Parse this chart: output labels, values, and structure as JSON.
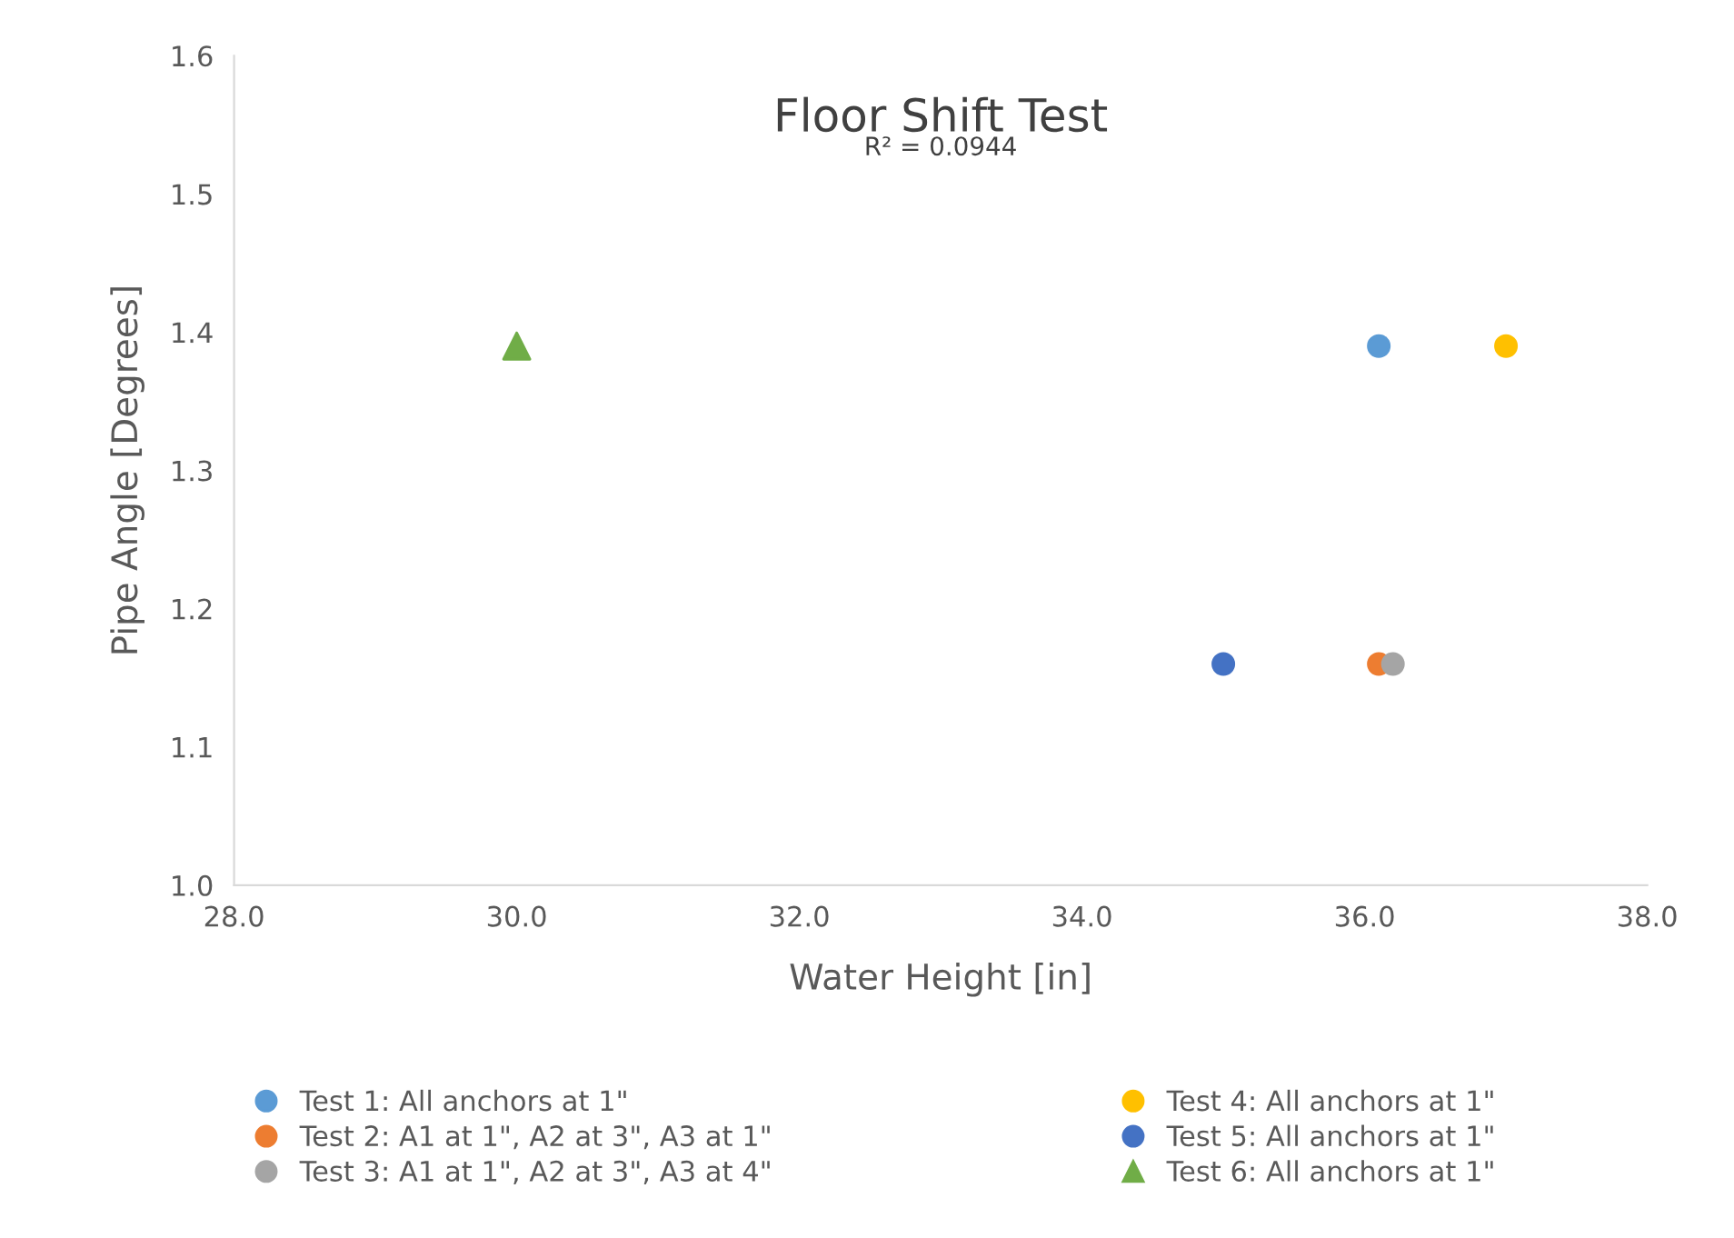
{
  "chart_data": {
    "type": "scatter",
    "title": "Floor Shift Test",
    "annotations": [
      "R² = 0.0944"
    ],
    "xlabel": "Water Height [in]",
    "ylabel": "Pipe Angle [Degrees]",
    "xlim": [
      28,
      38
    ],
    "xticks": [
      {
        "value": 28,
        "label": "28.0"
      },
      {
        "value": 30,
        "label": "30.0"
      },
      {
        "value": 32,
        "label": "32.0"
      },
      {
        "value": 34,
        "label": "34.0"
      },
      {
        "value": 36,
        "label": "36.0"
      },
      {
        "value": 38,
        "label": "38.0"
      }
    ],
    "ylim": [
      1.0,
      1.6
    ],
    "yticks": [
      {
        "value": 1.0,
        "label": "1.0"
      },
      {
        "value": 1.1,
        "label": "1.1"
      },
      {
        "value": 1.2,
        "label": "1.2"
      },
      {
        "value": 1.3,
        "label": "1.3"
      },
      {
        "value": 1.4,
        "label": "1.4"
      },
      {
        "value": 1.5,
        "label": "1.5"
      },
      {
        "value": 1.6,
        "label": "1.6"
      }
    ],
    "grid": false,
    "legend": "bottom",
    "marker": "circle",
    "series": [
      {
        "name": "Test 1: All anchors at 1\"",
        "color": "#5b9bd5",
        "x": [
          36.1
        ],
        "values": [
          1.39
        ]
      },
      {
        "name": "Test 2: A1 at 1\", A2 at 3\", A3 at 1\"",
        "color": "#ed7d31",
        "x": [
          36.1
        ],
        "values": [
          1.16
        ]
      },
      {
        "name": "Test 3: A1 at 1\", A2 at 3\", A3 at 4\"",
        "color": "#a5a5a5",
        "x": [
          36.2
        ],
        "values": [
          1.16
        ]
      },
      {
        "name": "Test 4: All anchors at 1\"",
        "color": "#ffc000",
        "x": [
          37.0
        ],
        "values": [
          1.39
        ]
      },
      {
        "name": "Test 5: All anchors at 1\"",
        "color": "#4472c4",
        "x": [
          35.0
        ],
        "values": [
          1.16
        ]
      },
      {
        "name": "Test 6: All anchors at 1\"",
        "color": "#70ad47",
        "x": [
          30.0
        ],
        "values": [
          1.39
        ],
        "marker": "triangle"
      }
    ]
  }
}
